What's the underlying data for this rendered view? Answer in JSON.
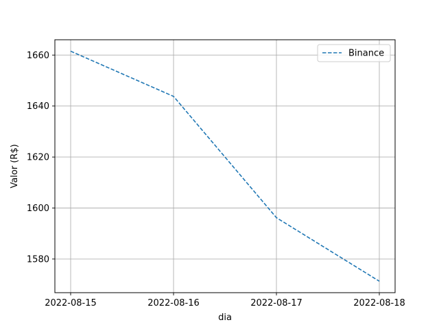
{
  "chart_data": {
    "type": "line",
    "title": "",
    "xlabel": "dia",
    "ylabel": "Valor (R$)",
    "x": [
      "2022-08-15",
      "2022-08-16",
      "2022-08-17",
      "2022-08-18"
    ],
    "series": [
      {
        "name": "Binance",
        "values": [
          1661.5,
          1643.8,
          1596.2,
          1571.3
        ],
        "color": "#1f77b4",
        "line_style": "dashed"
      }
    ],
    "yticks": [
      1580,
      1600,
      1620,
      1640,
      1660
    ],
    "ylim": [
      1566.8,
      1666.0
    ],
    "grid": true,
    "legend_position": "top-right"
  }
}
